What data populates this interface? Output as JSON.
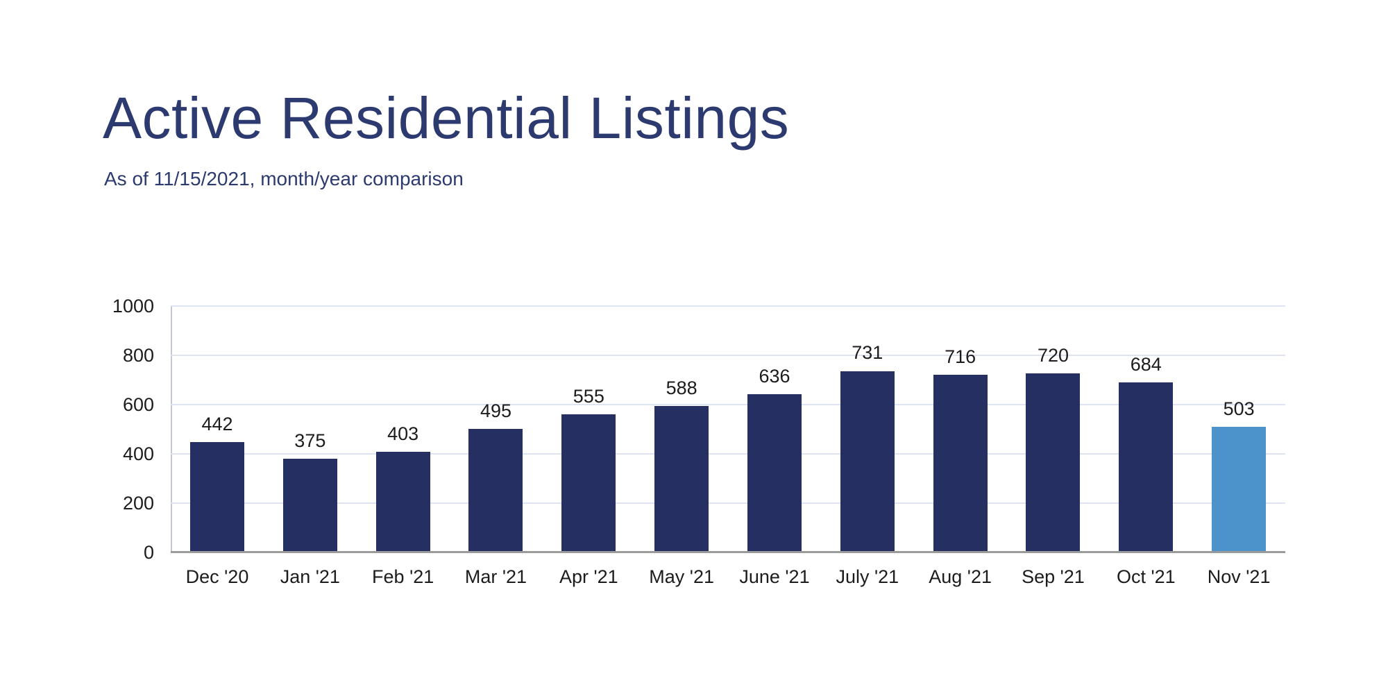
{
  "page": {
    "title": "Active Residential Listings",
    "subtitle": "As of 11/15/2021, month/year comparison"
  },
  "chart_data": {
    "type": "bar",
    "title": "Active Residential Listings",
    "subtitle": "As of 11/15/2021, month/year comparison",
    "categories": [
      "Dec '20",
      "Jan '21",
      "Feb '21",
      "Mar '21",
      "Apr '21",
      "May '21",
      "June '21",
      "July '21",
      "Aug '21",
      "Sep '21",
      "Oct '21",
      "Nov '21"
    ],
    "values": [
      442,
      375,
      403,
      495,
      555,
      588,
      636,
      731,
      716,
      720,
      684,
      503
    ],
    "data_labels_shown": true,
    "xlabel": "",
    "ylabel": "",
    "ylim": [
      0,
      1000
    ],
    "ytick_step": 200,
    "yticks": [
      "0",
      "200",
      "400",
      "600",
      "800",
      "1000"
    ],
    "grid": true,
    "legend": false,
    "highlight_index": 11,
    "colors": {
      "bar_default": "#262f62",
      "bar_highlight": "#4d93cb",
      "title_text": "#2c3a70",
      "label_text": "#1c1c1e",
      "gridline": "#dde3f0",
      "axis_line": "#c3c7d0",
      "baseline": "#9b9b9b",
      "background": "#ffffff"
    }
  }
}
